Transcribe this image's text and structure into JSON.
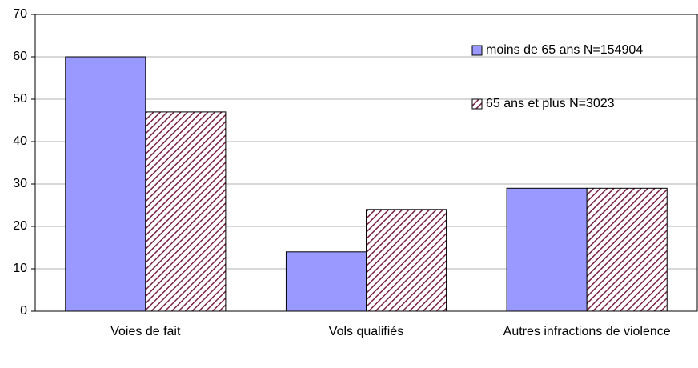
{
  "chart_data": {
    "type": "bar",
    "categories": [
      "Voies de fait",
      "Vols qualifiés",
      "Autres infractions de violence"
    ],
    "series": [
      {
        "name": "moins de 65 ans N=154904",
        "color": "#9999ff",
        "values": [
          60,
          14,
          29
        ]
      },
      {
        "name": "65 ans et plus N=3023",
        "color": "#7a1f45",
        "pattern": "hatch",
        "values": [
          47,
          24,
          29
        ]
      }
    ],
    "ylim": [
      0,
      70
    ],
    "yticks": [
      0,
      10,
      20,
      30,
      40,
      50,
      60,
      70
    ],
    "grid": true,
    "legend": "upper right"
  }
}
